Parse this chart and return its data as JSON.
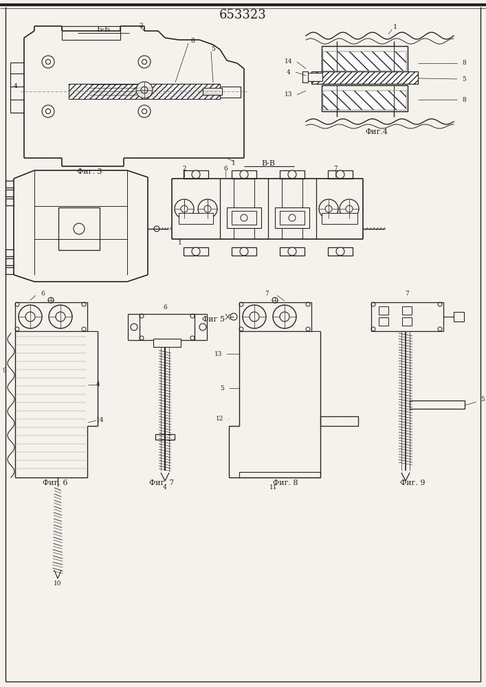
{
  "title": "653323",
  "title_fontsize": 13,
  "bg": "#f5f2ec",
  "lc": "#222222",
  "fig3_label": "Фиг. 3",
  "fig4_label": "Фиг.4",
  "fig5_label": "Фиг 5",
  "fig6_label": "Фиг. 6",
  "fig7_label": "Фиг. 7",
  "fig8_label": "Фиг. 8",
  "fig9_label": "Фиг. 9",
  "sec_bb": "Б-Б",
  "sec_vv": "В-В"
}
